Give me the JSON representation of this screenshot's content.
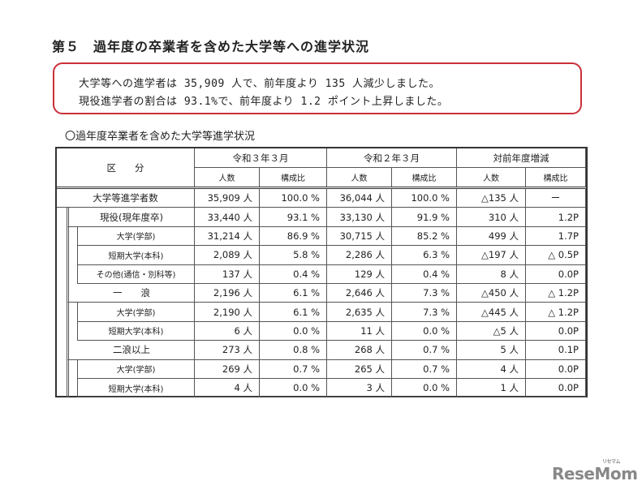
{
  "title": "第５　過年度の卒業者を含めた大学等への進学状況",
  "summary": {
    "line1": "大学等への進学者は 35,909 人で、前年度より 135 人減少しました。",
    "line2": "現役進学者の割合は 93.1%で、前年度より 1.2 ポイント上昇しました。",
    "border_color": "#c9303a"
  },
  "subtitle": "〇過年度卒業者を含めた大学等進学状況",
  "table": {
    "header_category": "区　　分",
    "groups": [
      "令和３年３月",
      "令和２年３月",
      "対前年度増減"
    ],
    "subheaders": [
      "人数",
      "構成比",
      "人数",
      "構成比",
      "人数",
      "構成比"
    ],
    "rows": [
      {
        "label": "大学等進学者数",
        "level": 0,
        "values": [
          "35,909 人",
          "100.0 %",
          "36,044 人",
          "100.0 %",
          "△135 人",
          "ー"
        ]
      },
      {
        "label": "現役(現年度卒)",
        "level": 1,
        "values": [
          "33,440 人",
          "93.1 %",
          "33,130 人",
          "91.9 %",
          "310 人",
          "1.2P"
        ]
      },
      {
        "label": "大学(学部)",
        "level": 2,
        "values": [
          "31,214 人",
          "86.9 %",
          "30,715 人",
          "85.2 %",
          "499 人",
          "1.7P"
        ]
      },
      {
        "label": "短期大学(本科)",
        "level": 2,
        "values": [
          "2,089 人",
          "5.8 %",
          "2,286 人",
          "6.3 %",
          "△197 人",
          "△ 0.5P"
        ]
      },
      {
        "label": "その他(通信・別科等)",
        "level": 2,
        "values": [
          "137 人",
          "0.4 %",
          "129 人",
          "0.4 %",
          "8 人",
          "0.0P"
        ]
      },
      {
        "label": "一　　浪",
        "level": 1,
        "values": [
          "2,196 人",
          "6.1 %",
          "2,646 人",
          "7.3 %",
          "△450 人",
          "△ 1.2P"
        ]
      },
      {
        "label": "大学(学部)",
        "level": 2,
        "values": [
          "2,190 人",
          "6.1 %",
          "2,635 人",
          "7.3 %",
          "△445 人",
          "△ 1.2P"
        ]
      },
      {
        "label": "短期大学(本科)",
        "level": 2,
        "values": [
          "6 人",
          "0.0 %",
          "11 人",
          "0.0 %",
          "△5 人",
          "0.0P"
        ]
      },
      {
        "label": "二浪以上",
        "level": 1,
        "values": [
          "273 人",
          "0.8 %",
          "268 人",
          "0.7 %",
          "5 人",
          "0.1P"
        ]
      },
      {
        "label": "大学(学部)",
        "level": 2,
        "values": [
          "269 人",
          "0.7 %",
          "265 人",
          "0.7 %",
          "4 人",
          "0.0P"
        ]
      },
      {
        "label": "短期大学(本科)",
        "level": 2,
        "values": [
          "4 人",
          "0.0 %",
          "3 人",
          "0.0 %",
          "1 人",
          "0.0P"
        ]
      }
    ]
  },
  "logo": {
    "text": "ReseMom",
    "kana": "リセマム"
  }
}
